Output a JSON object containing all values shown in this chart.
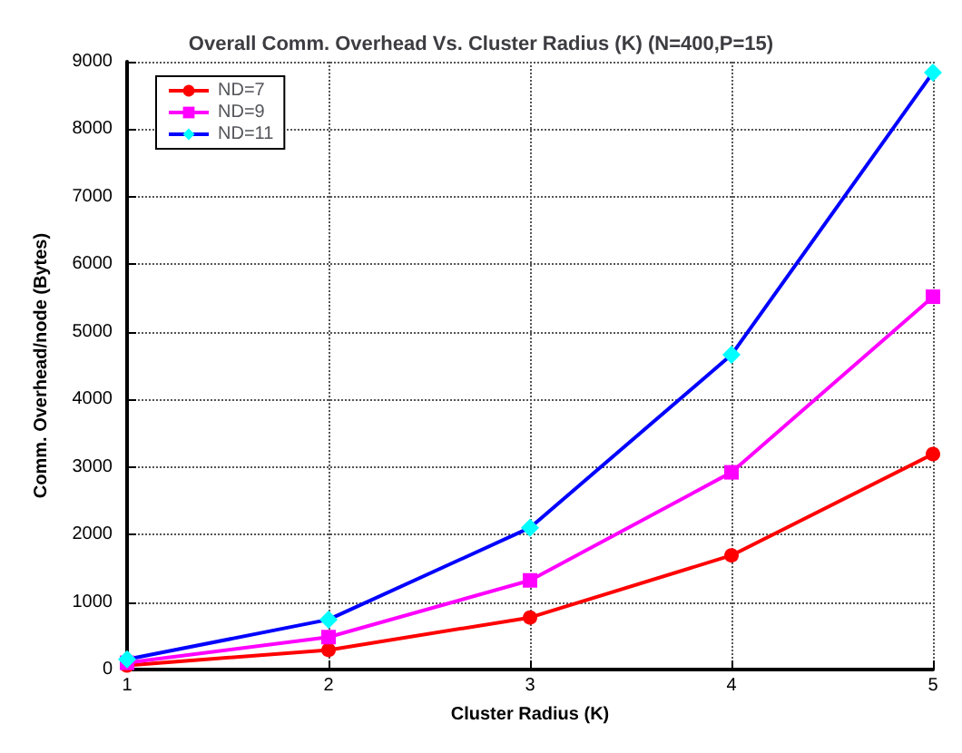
{
  "chart_data": {
    "type": "line",
    "title": "Overall Comm. Overhead Vs. Cluster Radius (K) (N=400,P=15)",
    "xlabel": "Cluster Radius (K)",
    "ylabel": "Comm. Overhead/node (Bytes)",
    "x": [
      1,
      2,
      3,
      4,
      5
    ],
    "xlim": [
      1,
      5
    ],
    "xticks": [
      1,
      2,
      3,
      4,
      5
    ],
    "ylim": [
      0,
      9000
    ],
    "yticks": [
      0,
      1000,
      2000,
      3000,
      4000,
      5000,
      6000,
      7000,
      8000,
      9000
    ],
    "grid": true,
    "legend": "top left",
    "series": [
      {
        "name": "ND=7",
        "color": "#ff0000",
        "marker": "circle",
        "values": [
          60,
          290,
          770,
          1690,
          3190
        ]
      },
      {
        "name": "ND=9",
        "color": "#ff00ff",
        "marker": "square",
        "values": [
          100,
          480,
          1320,
          2920,
          5520
        ]
      },
      {
        "name": "ND=11",
        "color": "#0000ff",
        "marker": "diamond",
        "values": [
          150,
          740,
          2100,
          4660,
          8840
        ]
      }
    ]
  }
}
